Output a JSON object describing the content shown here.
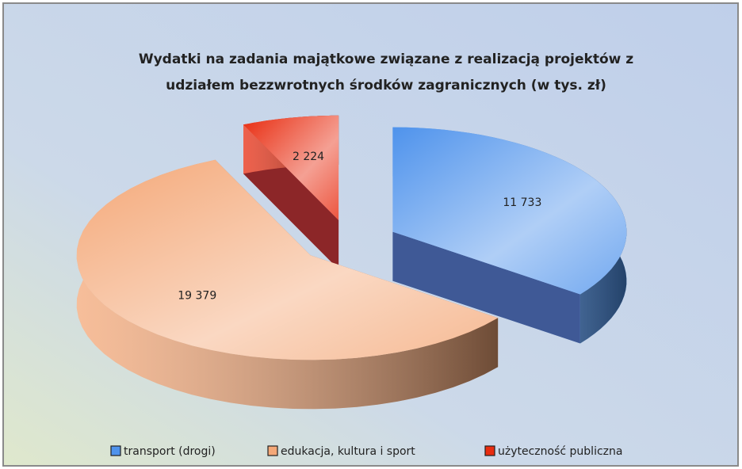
{
  "chart_data": {
    "type": "pie3d",
    "title": [
      "Wydatki na zadania majątkowe związane z realizacją projektów z",
      "udziałem bezzwrotnych środków zagranicznych (w tys. zł)"
    ],
    "categories": [
      "transport (drogi)",
      "edukacja, kultura i sport",
      "użyteczność publiczna"
    ],
    "values": [
      11733,
      19379,
      2224
    ],
    "value_labels": [
      "11 733",
      "19 379",
      "2 224"
    ],
    "colors": [
      "#4f93ec",
      "#f4a878",
      "#e82c10"
    ],
    "legend": "bottom"
  }
}
